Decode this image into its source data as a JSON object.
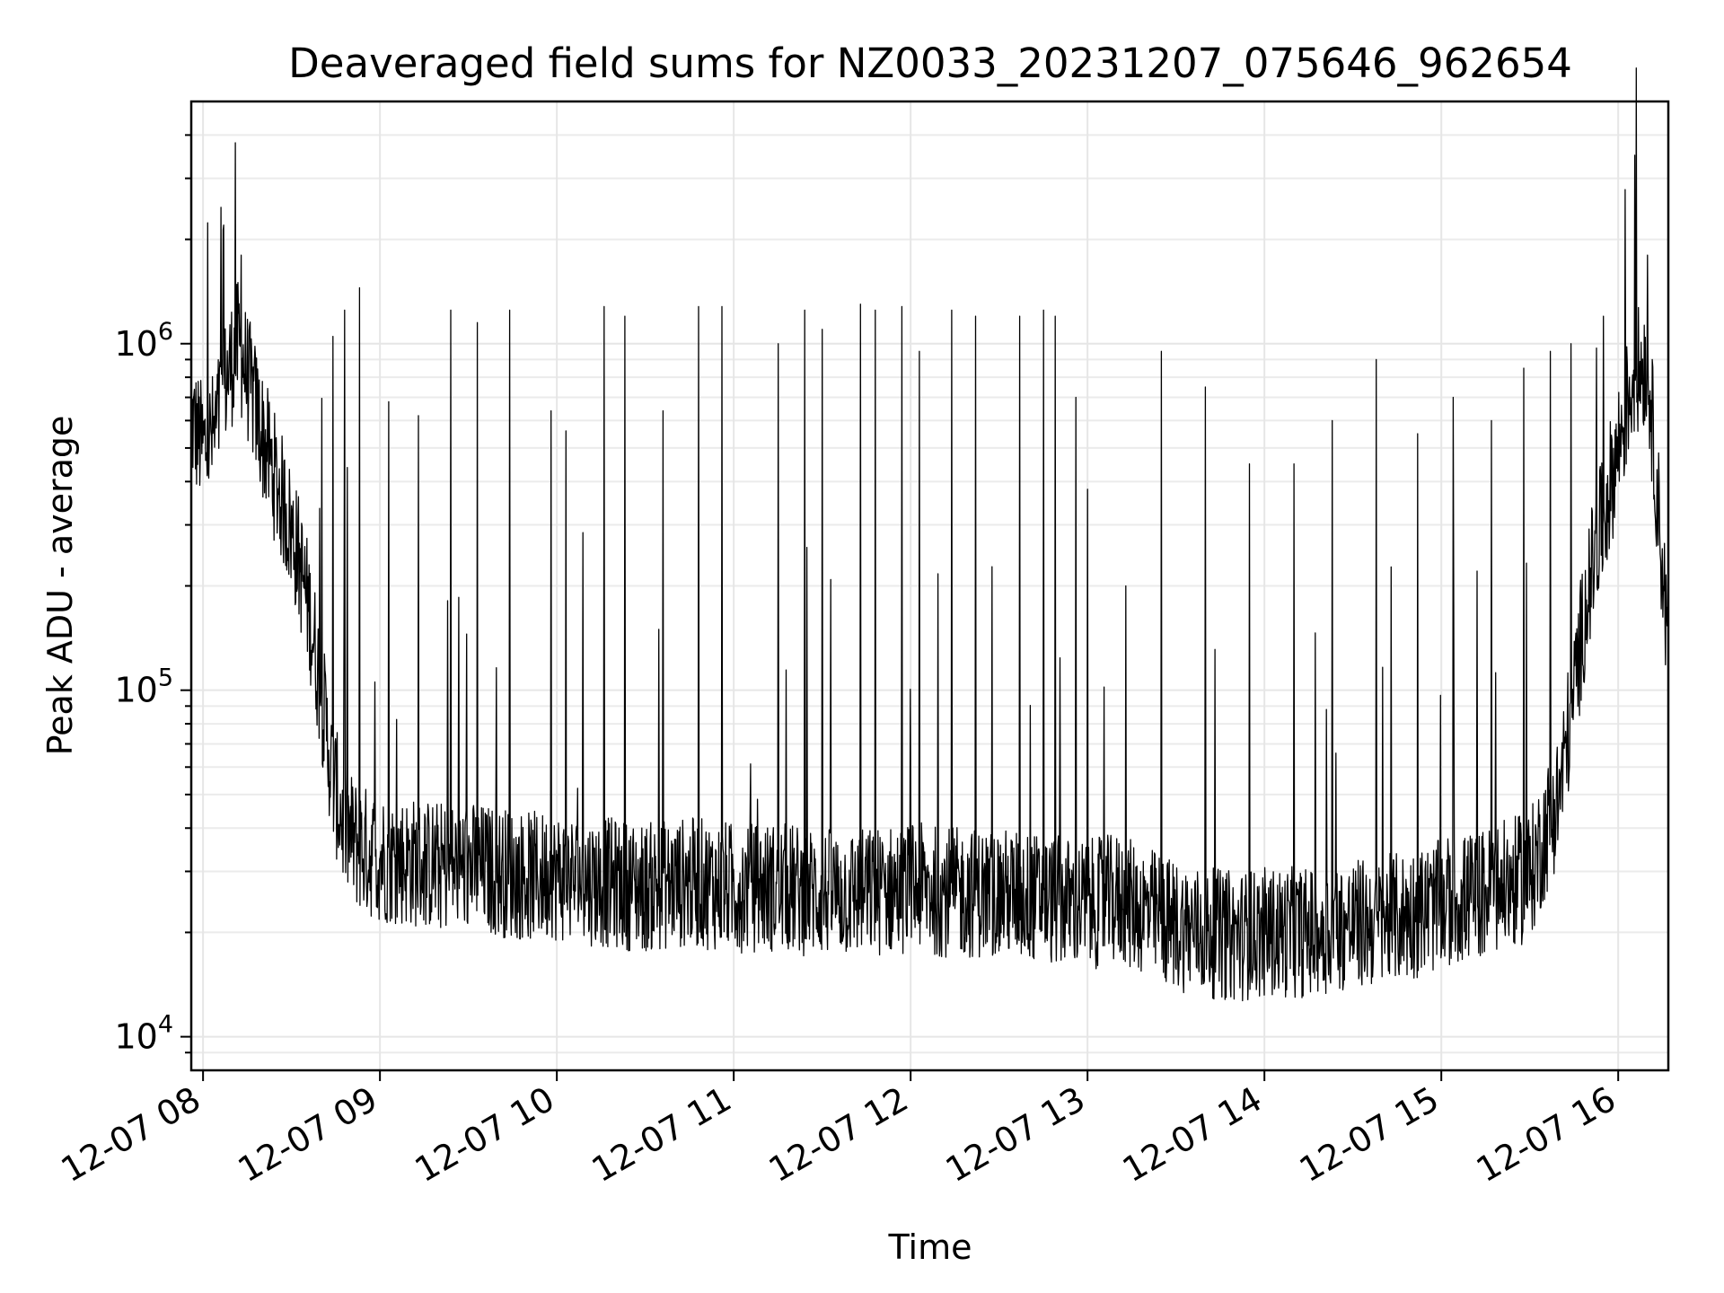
{
  "chart_data": {
    "type": "line",
    "title": "Deaveraged field sums for NZ0033_20231207_075646_962654",
    "xlabel": "Time",
    "ylabel": "Peak ADU - average",
    "yscale": "log",
    "xlim": [
      "2023-12-07 07:56",
      "2023-12-07 16:17"
    ],
    "ylim": [
      8000,
      5000000
    ],
    "grid": true,
    "x_ticks": [
      {
        "value": "2023-12-07 08:00",
        "label": "12-07 08"
      },
      {
        "value": "2023-12-07 09:00",
        "label": "12-07 09"
      },
      {
        "value": "2023-12-07 10:00",
        "label": "12-07 10"
      },
      {
        "value": "2023-12-07 11:00",
        "label": "12-07 11"
      },
      {
        "value": "2023-12-07 12:00",
        "label": "12-07 12"
      },
      {
        "value": "2023-12-07 13:00",
        "label": "12-07 13"
      },
      {
        "value": "2023-12-07 14:00",
        "label": "12-07 14"
      },
      {
        "value": "2023-12-07 15:00",
        "label": "12-07 15"
      },
      {
        "value": "2023-12-07 16:00",
        "label": "12-07 16"
      }
    ],
    "y_ticks": [
      {
        "value": 10000,
        "base": "10",
        "exp": "4"
      },
      {
        "value": 100000,
        "base": "10",
        "exp": "5"
      },
      {
        "value": 1000000,
        "base": "10",
        "exp": "6"
      }
    ],
    "series": [
      {
        "color": "#000000",
        "x": [
          "07:56",
          "08:00",
          "08:04",
          "08:08",
          "08:12",
          "08:16",
          "08:20",
          "08:24",
          "08:28",
          "08:32",
          "08:36",
          "08:40",
          "08:44",
          "08:48",
          "08:52",
          "08:56",
          "09:00",
          "09:10",
          "09:20",
          "09:30",
          "09:40",
          "09:50",
          "10:00",
          "10:15",
          "10:30",
          "10:45",
          "11:00",
          "11:15",
          "11:30",
          "11:45",
          "12:00",
          "12:15",
          "12:30",
          "12:45",
          "13:00",
          "13:10",
          "13:20",
          "13:30",
          "13:40",
          "13:50",
          "14:00",
          "14:15",
          "14:30",
          "14:45",
          "15:00",
          "15:15",
          "15:30",
          "15:40",
          "15:50",
          "16:00",
          "16:05",
          "16:10",
          "16:14",
          "16:17"
        ],
        "y": [
          600000,
          500000,
          550000,
          800000,
          1000000,
          750000,
          550000,
          420000,
          330000,
          250000,
          170000,
          100000,
          55000,
          40000,
          36000,
          34000,
          33000,
          32000,
          31000,
          31000,
          30000,
          29000,
          29000,
          28000,
          27000,
          28000,
          27000,
          27000,
          26000,
          26000,
          27000,
          26000,
          26000,
          25000,
          24000,
          25000,
          23000,
          21000,
          20000,
          19500,
          20000,
          20000,
          21000,
          22000,
          24000,
          26000,
          29000,
          50000,
          200000,
          500000,
          800000,
          900000,
          300000,
          130000
        ],
        "spikes": [
          {
            "x": "08:07",
            "y": 2200000
          },
          {
            "x": "08:11",
            "y": 3800000
          },
          {
            "x": "08:13",
            "y": 1800000
          },
          {
            "x": "08:44",
            "y": 1050000
          },
          {
            "x": "08:48",
            "y": 1250000
          },
          {
            "x": "08:53",
            "y": 1450000
          },
          {
            "x": "09:03",
            "y": 680000
          },
          {
            "x": "09:13",
            "y": 620000
          },
          {
            "x": "09:24",
            "y": 1250000
          },
          {
            "x": "09:33",
            "y": 1150000
          },
          {
            "x": "09:44",
            "y": 1250000
          },
          {
            "x": "09:58",
            "y": 640000
          },
          {
            "x": "10:03",
            "y": 560000
          },
          {
            "x": "10:16",
            "y": 1280000
          },
          {
            "x": "10:23",
            "y": 1200000
          },
          {
            "x": "10:36",
            "y": 640000
          },
          {
            "x": "10:48",
            "y": 1280000
          },
          {
            "x": "10:56",
            "y": 1280000
          },
          {
            "x": "11:15",
            "y": 1000000
          },
          {
            "x": "11:24",
            "y": 1150000
          },
          {
            "x": "11:24",
            "y": 1250000
          },
          {
            "x": "11:30",
            "y": 1100000
          },
          {
            "x": "11:43",
            "y": 1300000
          },
          {
            "x": "11:48",
            "y": 1250000
          },
          {
            "x": "11:57",
            "y": 1280000
          },
          {
            "x": "12:03",
            "y": 950000
          },
          {
            "x": "12:14",
            "y": 1250000
          },
          {
            "x": "12:22",
            "y": 1200000
          },
          {
            "x": "12:37",
            "y": 1200000
          },
          {
            "x": "12:45",
            "y": 1250000
          },
          {
            "x": "12:49",
            "y": 1200000
          },
          {
            "x": "12:56",
            "y": 700000
          },
          {
            "x": "13:00",
            "y": 380000
          },
          {
            "x": "13:13",
            "y": 200000
          },
          {
            "x": "13:25",
            "y": 950000
          },
          {
            "x": "13:40",
            "y": 750000
          },
          {
            "x": "13:55",
            "y": 450000
          },
          {
            "x": "14:10",
            "y": 450000
          },
          {
            "x": "14:23",
            "y": 600000
          },
          {
            "x": "14:38",
            "y": 900000
          },
          {
            "x": "14:52",
            "y": 550000
          },
          {
            "x": "15:04",
            "y": 700000
          },
          {
            "x": "15:17",
            "y": 600000
          },
          {
            "x": "15:28",
            "y": 850000
          },
          {
            "x": "15:37",
            "y": 950000
          },
          {
            "x": "15:44",
            "y": 1000000
          },
          {
            "x": "15:55",
            "y": 1200000
          },
          {
            "x": "16:10",
            "y": 1800000
          }
        ]
      }
    ]
  }
}
